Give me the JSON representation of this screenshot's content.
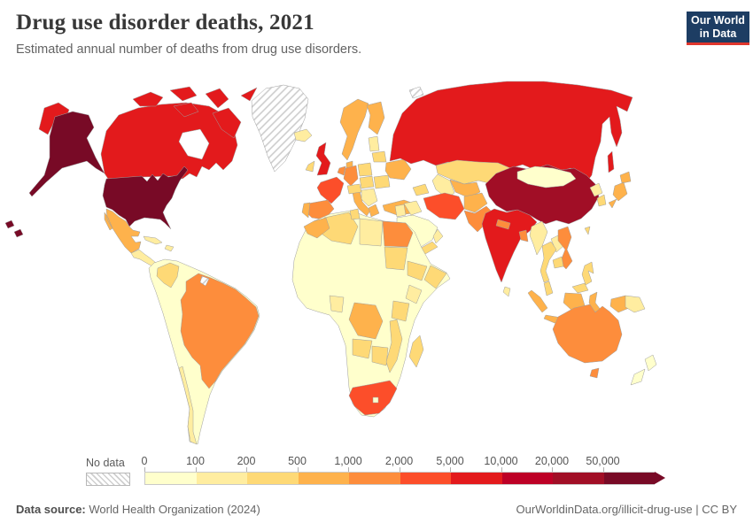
{
  "header": {
    "title": "Drug use disorder deaths, 2021",
    "subtitle": "Estimated annual number of deaths from drug use disorders."
  },
  "logo": {
    "line1": "Our World",
    "line2": "in Data",
    "bg_color": "#1d3d63",
    "accent_color": "#e0362c",
    "text_color": "#ffffff"
  },
  "legend": {
    "no_data_label": "No data"
  },
  "footer": {
    "data_source_label": "Data source:",
    "data_source_value": "World Health Organization (2024)",
    "link": "OurWorldinData.org/illicit-drug-use",
    "license": " | CC BY"
  },
  "chart_data": {
    "type": "heatmap",
    "subtype": "choropleth-world-map",
    "title": "Drug use disorder deaths, 2021",
    "unit": "deaths per year",
    "year": 2021,
    "legend_position": "bottom",
    "thresholds": [
      "0",
      "100",
      "200",
      "500",
      "1,000",
      "2,000",
      "5,000",
      "10,000",
      "20,000",
      "50,000"
    ],
    "bin_ranges": [
      "0–100",
      "100–200",
      "200–500",
      "500–1,000",
      "1,000–2,000",
      "2,000–5,000",
      "5,000–10,000",
      "10,000–20,000",
      "20,000–50,000",
      "50,000+"
    ],
    "colors": [
      "#FFFFCC",
      "#FFEDA0",
      "#FED976",
      "#FEB24C",
      "#FD8D3C",
      "#FC4E2A",
      "#E31A1C",
      "#BD0026",
      "#A10E26",
      "#780A26"
    ],
    "no_data_color": "hatched-gray",
    "countries": {
      "united-states": {
        "name": "United States",
        "bin": 9
      },
      "canada": {
        "name": "Canada",
        "bin": 6
      },
      "greenland": {
        "name": "Greenland",
        "bin": "no_data"
      },
      "mexico": {
        "name": "Mexico",
        "bin": 3
      },
      "central-america": {
        "name": "Central America",
        "bin": 1
      },
      "cuba": {
        "name": "Cuba",
        "bin": 1
      },
      "hispaniola": {
        "name": "Haiti / Dominican Republic",
        "bin": 1
      },
      "south-america-other": {
        "name": "Other South America",
        "bin": 0
      },
      "brazil": {
        "name": "Brazil",
        "bin": 4
      },
      "colombia": {
        "name": "Colombia",
        "bin": 2
      },
      "chile": {
        "name": "Chile",
        "bin": 1
      },
      "french-guiana": {
        "name": "French Guiana",
        "bin": "no_data"
      },
      "iceland": {
        "name": "Iceland",
        "bin": 1
      },
      "united-kingdom": {
        "name": "United Kingdom",
        "bin": 6
      },
      "ireland": {
        "name": "Ireland",
        "bin": 2
      },
      "scandinavia": {
        "name": "Norway / Sweden",
        "bin": 3
      },
      "finland": {
        "name": "Finland",
        "bin": 3
      },
      "denmark": {
        "name": "Denmark",
        "bin": 3
      },
      "baltics": {
        "name": "Baltic states",
        "bin": 1
      },
      "belarus": {
        "name": "Belarus",
        "bin": 2
      },
      "poland": {
        "name": "Poland",
        "bin": 2
      },
      "germany": {
        "name": "Germany",
        "bin": 4
      },
      "benelux": {
        "name": "Benelux",
        "bin": 4
      },
      "france": {
        "name": "France",
        "bin": 5
      },
      "spain": {
        "name": "Spain",
        "bin": 4
      },
      "portugal": {
        "name": "Portugal",
        "bin": 3
      },
      "italy": {
        "name": "Italy",
        "bin": 3
      },
      "switzerland-austria": {
        "name": "Switzerland / Austria",
        "bin": 2
      },
      "czech-hungary": {
        "name": "Czechia / Hungary",
        "bin": 2
      },
      "balkans": {
        "name": "Balkans",
        "bin": 1
      },
      "greece": {
        "name": "Greece",
        "bin": 3
      },
      "romania": {
        "name": "Romania",
        "bin": 2
      },
      "ukraine": {
        "name": "Ukraine",
        "bin": 3
      },
      "russia": {
        "name": "Russia",
        "bin": 6
      },
      "kazakhstan": {
        "name": "Kazakhstan",
        "bin": 2
      },
      "uzbekistan": {
        "name": "Uzbekistan",
        "bin": 3
      },
      "turkmenistan": {
        "name": "Turkmenistan",
        "bin": 1
      },
      "caucasus": {
        "name": "Caucasus",
        "bin": 2
      },
      "turkey": {
        "name": "Turkey",
        "bin": 3
      },
      "syria-jordan": {
        "name": "Syria / Jordan",
        "bin": 1
      },
      "iraq": {
        "name": "Iraq",
        "bin": 1
      },
      "saudi-arabia": {
        "name": "Saudi Arabia",
        "bin": 0
      },
      "yemen": {
        "name": "Yemen",
        "bin": 2
      },
      "oman": {
        "name": "Oman",
        "bin": 1
      },
      "iran": {
        "name": "Iran",
        "bin": 5
      },
      "afghanistan": {
        "name": "Afghanistan",
        "bin": 3
      },
      "pakistan": {
        "name": "Pakistan",
        "bin": 4
      },
      "india": {
        "name": "India",
        "bin": 6
      },
      "nepal": {
        "name": "Nepal",
        "bin": 4
      },
      "bangladesh": {
        "name": "Bangladesh",
        "bin": 4
      },
      "sri-lanka": {
        "name": "Sri Lanka",
        "bin": 1
      },
      "china": {
        "name": "China",
        "bin": 8
      },
      "mongolia": {
        "name": "Mongolia",
        "bin": 0
      },
      "north-korea": {
        "name": "North Korea",
        "bin": 1
      },
      "south-korea": {
        "name": "South Korea",
        "bin": 2
      },
      "japan": {
        "name": "Japan",
        "bin": 3
      },
      "taiwan": {
        "name": "Taiwan",
        "bin": 2
      },
      "myanmar": {
        "name": "Myanmar",
        "bin": 1
      },
      "thailand": {
        "name": "Thailand",
        "bin": 2
      },
      "laos": {
        "name": "Laos",
        "bin": 1
      },
      "vietnam": {
        "name": "Vietnam",
        "bin": 4
      },
      "cambodia": {
        "name": "Cambodia",
        "bin": 2
      },
      "malaysia": {
        "name": "Malaysia",
        "bin": 2
      },
      "indonesia": {
        "name": "Indonesia",
        "bin": 3
      },
      "philippines": {
        "name": "Philippines",
        "bin": 2
      },
      "papua-new-guinea": {
        "name": "Papua New Guinea",
        "bin": 1
      },
      "africa-other": {
        "name": "Other Africa",
        "bin": 0
      },
      "algeria": {
        "name": "Algeria",
        "bin": 2
      },
      "morocco": {
        "name": "Morocco",
        "bin": 3
      },
      "tunisia": {
        "name": "Tunisia",
        "bin": 2
      },
      "libya": {
        "name": "Libya",
        "bin": 1
      },
      "egypt": {
        "name": "Egypt",
        "bin": 4
      },
      "sudan": {
        "name": "Sudan",
        "bin": 2
      },
      "ethiopia": {
        "name": "Ethiopia",
        "bin": 2
      },
      "somalia": {
        "name": "Somalia",
        "bin": 2
      },
      "kenya": {
        "name": "Kenya",
        "bin": 1
      },
      "tanzania": {
        "name": "Tanzania",
        "bin": 2
      },
      "drc": {
        "name": "Democratic Republic of Congo",
        "bin": 3
      },
      "nigeria": {
        "name": "Nigeria",
        "bin": 1
      },
      "angola": {
        "name": "Angola",
        "bin": 2
      },
      "zambia-zimbabwe": {
        "name": "Zambia / Zimbabwe",
        "bin": 2
      },
      "mozambique": {
        "name": "Mozambique",
        "bin": 2
      },
      "south-africa": {
        "name": "South Africa",
        "bin": 5
      },
      "lesotho": {
        "name": "Lesotho",
        "bin": 0
      },
      "madagascar": {
        "name": "Madagascar",
        "bin": 2
      },
      "australia": {
        "name": "Australia",
        "bin": 4
      },
      "new-zealand": {
        "name": "New Zealand",
        "bin": 0
      },
      "svalbard": {
        "name": "Svalbard",
        "bin": "no_data"
      }
    }
  }
}
